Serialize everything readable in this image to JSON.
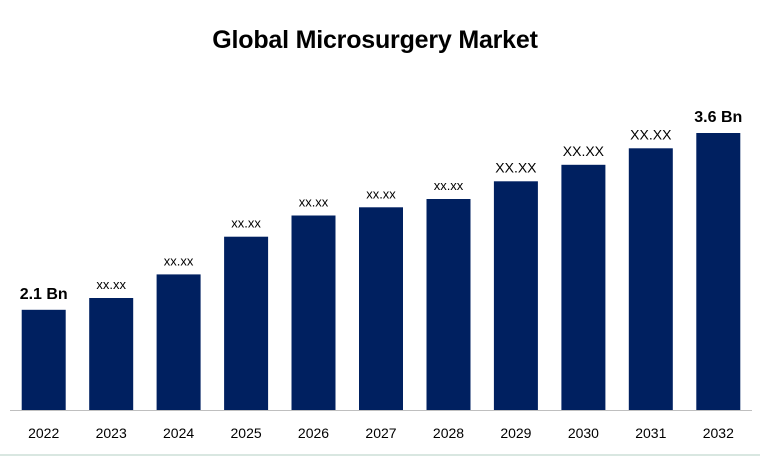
{
  "chart_data": {
    "type": "bar",
    "title": "Global Microsurgery Market",
    "xlabel": "",
    "ylabel": "",
    "categories": [
      "2022",
      "2023",
      "2024",
      "2025",
      "2026",
      "2027",
      "2028",
      "2029",
      "2030",
      "2031",
      "2032"
    ],
    "values": [
      2.1,
      2.2,
      2.4,
      2.72,
      2.9,
      2.97,
      3.04,
      3.19,
      3.33,
      3.47,
      3.6
    ],
    "data_labels": [
      "2.1 Bn",
      "xx.xx",
      "xx.xx",
      "xx.xx",
      "xx.xx",
      "xx.xx",
      "xx.xx",
      "XX.XX",
      "XX.XX",
      "XX.XX",
      "3.6  Bn"
    ],
    "ylim": [
      1.25,
      3.6
    ],
    "grid": false,
    "legend": "none",
    "colors": {
      "bar": "#002060",
      "axis": "#bfbfbf",
      "text": "#000000"
    }
  }
}
